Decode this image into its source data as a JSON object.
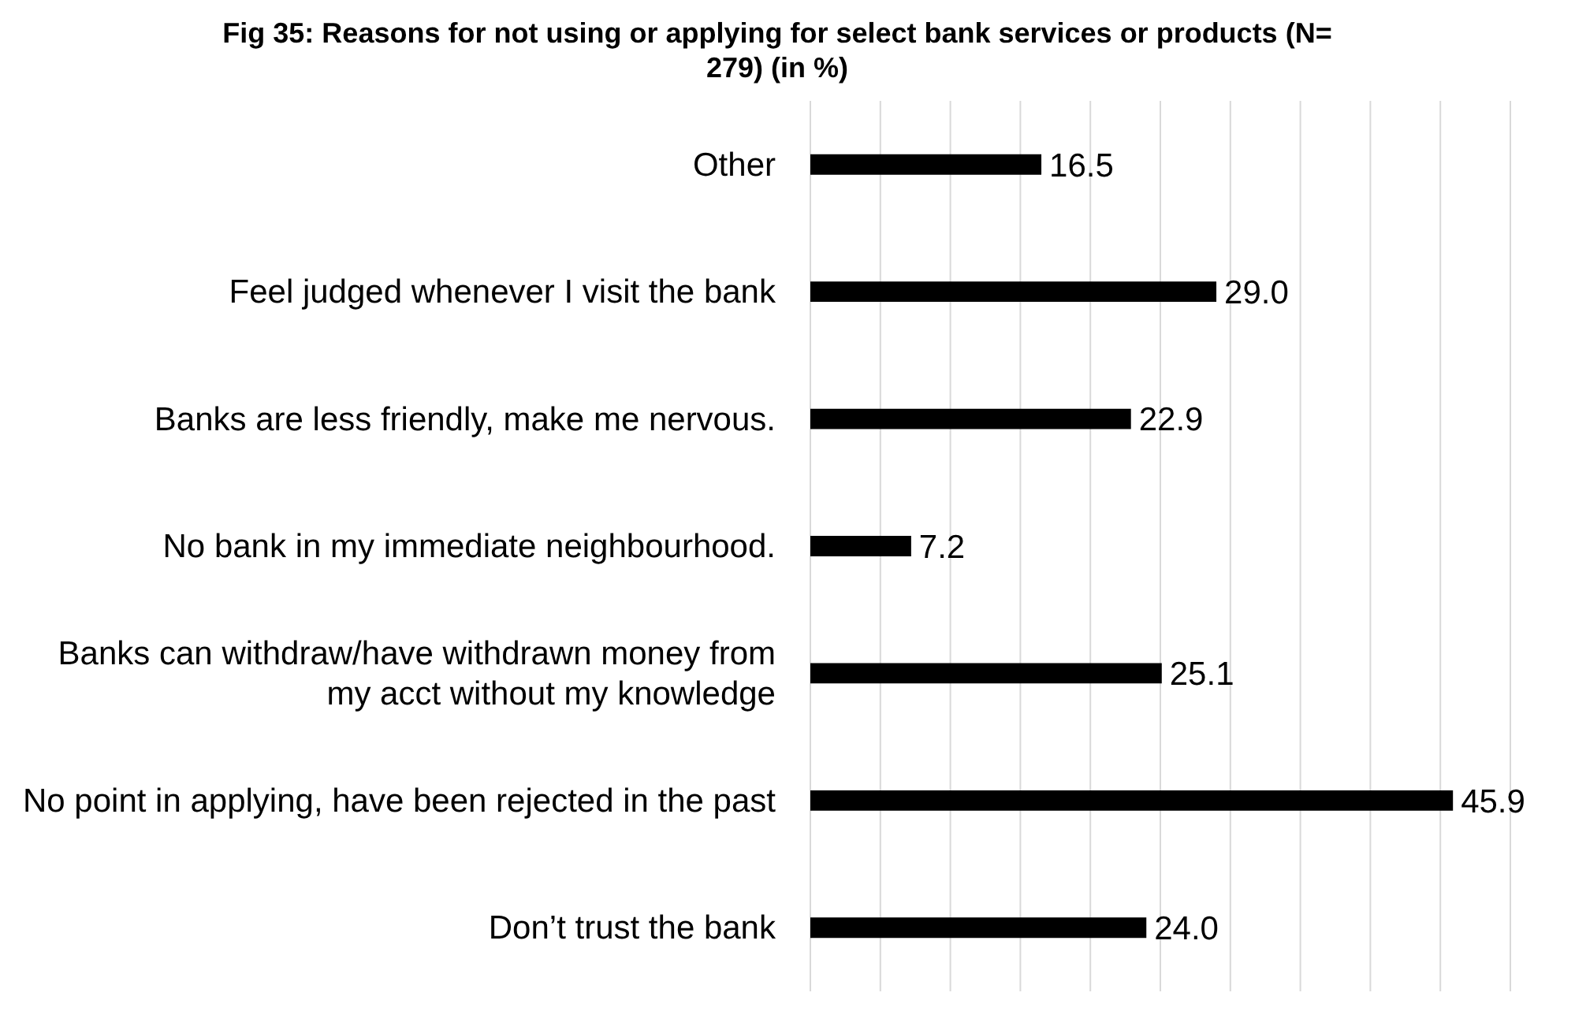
{
  "chart_data": {
    "type": "bar",
    "orientation": "horizontal",
    "title": "Fig 35: Reasons for not using or applying for select bank services or products (N= 279) (in %)",
    "categories": [
      "Other",
      "Feel judged whenever I visit the bank",
      "Banks are less friendly, make me nervous.",
      "No bank in my immediate neighbourhood.",
      "Banks can withdraw/have withdrawn money from my acct without my knowledge",
      "No point in applying, have been rejected in the past",
      "Don’t trust the bank"
    ],
    "values": [
      16.5,
      29.0,
      22.9,
      7.2,
      25.1,
      45.9,
      24.0
    ],
    "value_labels": [
      "16.5",
      "29.0",
      "22.9",
      "7.2",
      "25.1",
      "45.9",
      "24.0"
    ],
    "color": "#000000",
    "grid": "x",
    "tick_labels": "y",
    "legend": false
  }
}
